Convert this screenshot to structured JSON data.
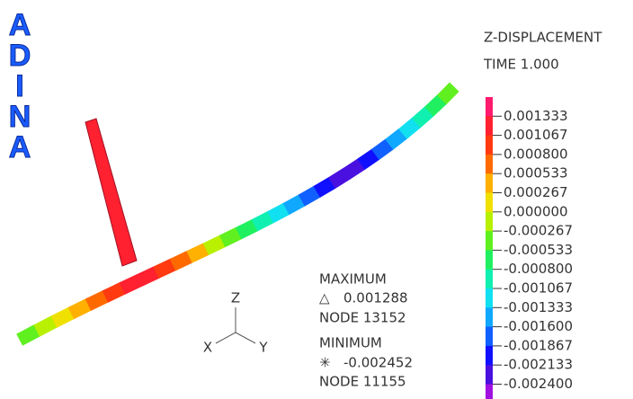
{
  "logo": [
    "A",
    "D",
    "I",
    "N",
    "A"
  ],
  "header": {
    "title": "Z-DISPLACEMENT",
    "time": "TIME 1.000"
  },
  "legend": {
    "labels": [
      "0.001333",
      "0.001067",
      "0.000800",
      "0.000533",
      "0.000267",
      "0.000000",
      "-0.000267",
      "-0.000533",
      "-0.000800",
      "-0.001067",
      "-0.001333",
      "-0.001600",
      "-0.001867",
      "-0.002133",
      "-0.002400"
    ]
  },
  "maximum": {
    "label": "MAXIMUM",
    "symbol": "△",
    "value": "0.001288",
    "node": "NODE 13152"
  },
  "minimum": {
    "label": "MINIMUM",
    "symbol": "✳",
    "value": "-0.002452",
    "node": "NODE 11155"
  },
  "axes": {
    "z": "Z",
    "x": "X",
    "y": "Y"
  }
}
